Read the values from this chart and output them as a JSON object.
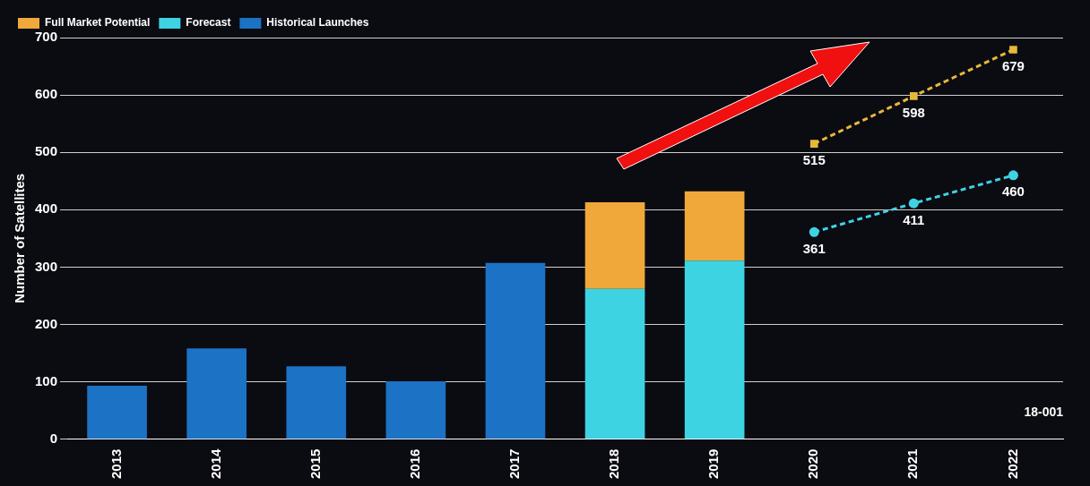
{
  "chart_data": {
    "type": "bar",
    "ylabel": "Number of Satellites",
    "categories": [
      "2013",
      "2014",
      "2015",
      "2016",
      "2017",
      "2018",
      "2019",
      "2020",
      "2021",
      "2022"
    ],
    "stacked": true,
    "ylim": [
      0,
      700
    ],
    "yticks": [
      0,
      100,
      200,
      300,
      400,
      500,
      600,
      700
    ],
    "grid": "y",
    "legend": "top left",
    "line_style": "dashed",
    "series": [
      {
        "name": "Historical Launches",
        "color": "#1c72c4",
        "values": [
          93,
          158,
          127,
          101,
          307,
          null,
          null,
          null,
          null,
          null
        ]
      },
      {
        "name": "Forecast",
        "color": "#3ed3e3",
        "values": [
          null,
          null,
          null,
          null,
          null,
          262,
          311,
          null,
          null,
          null
        ]
      },
      {
        "name": "Full Market Potential",
        "color": "#f0a83a",
        "values": [
          null,
          null,
          null,
          null,
          null,
          151,
          121,
          null,
          null,
          null
        ]
      },
      {
        "type": "line",
        "marker": "square",
        "color": "#e8b838",
        "values": [
          null,
          null,
          null,
          null,
          null,
          null,
          null,
          515,
          598,
          679
        ],
        "value_labels": [
          null,
          null,
          null,
          null,
          null,
          null,
          null,
          "515",
          "598",
          "679"
        ]
      },
      {
        "type": "line",
        "marker": "circle",
        "color": "#3ed3e3",
        "values": [
          null,
          null,
          null,
          null,
          null,
          null,
          null,
          361,
          411,
          460
        ],
        "value_labels": [
          null,
          null,
          null,
          null,
          null,
          null,
          null,
          "361",
          "411",
          "460"
        ]
      }
    ],
    "annotations": [
      "18-001"
    ]
  }
}
